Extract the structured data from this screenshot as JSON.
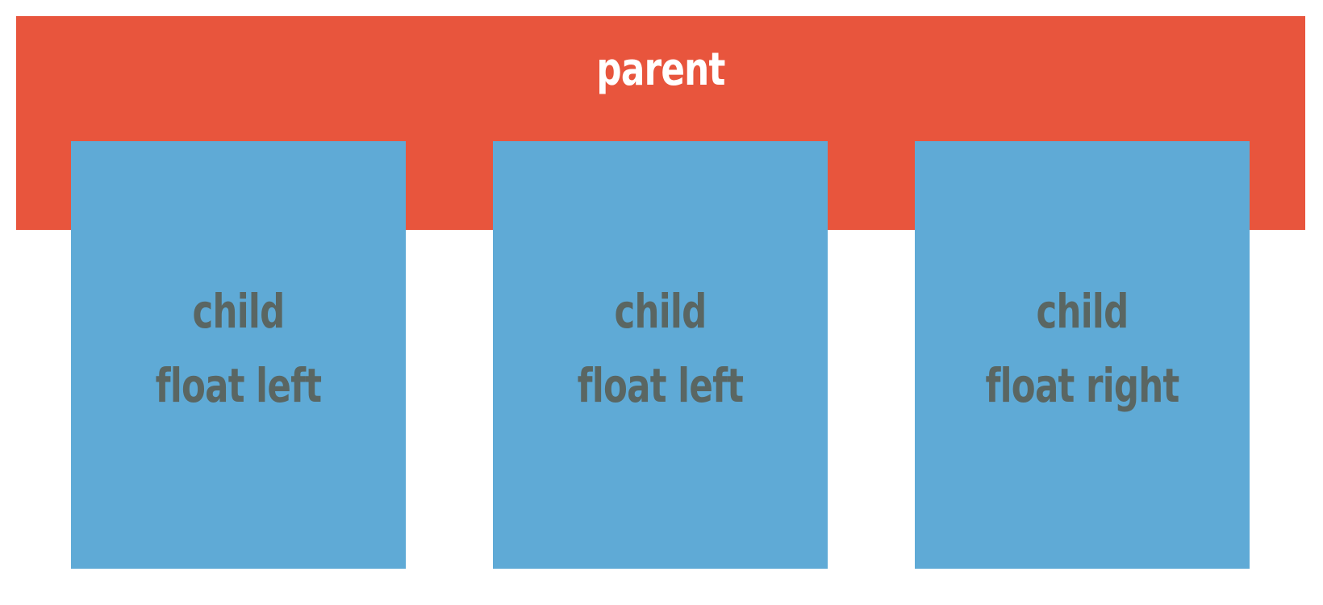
{
  "parent": {
    "label": "parent",
    "color": "#E8553D"
  },
  "children": [
    {
      "line1": "child",
      "line2": "float left",
      "color": "#5FAAD6"
    },
    {
      "line1": "child",
      "line2": "float left",
      "color": "#5FAAD6"
    },
    {
      "line1": "child",
      "line2": "float right",
      "color": "#5FAAD6"
    }
  ],
  "text_colors": {
    "parent_label": "#FFFFFF",
    "child_label": "#5A6662"
  }
}
